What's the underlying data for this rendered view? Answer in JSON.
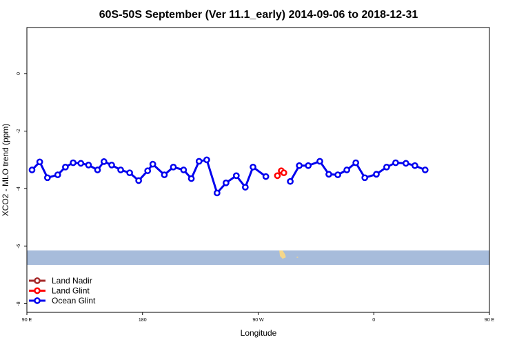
{
  "chart_data": {
    "type": "line",
    "title": "60S-50S September (Ver 11.1_early)   2014-09-06 to 2018-12-31",
    "xlabel": "Longitude",
    "ylabel": "XCO2 - MLO trend (ppm)",
    "xlim": [
      90,
      450
    ],
    "ylim": [
      -8.3,
      1.6
    ],
    "x_ticks": [
      {
        "value": 90,
        "label": "90 E"
      },
      {
        "value": 180,
        "label": "180"
      },
      {
        "value": 270,
        "label": "90 W"
      },
      {
        "value": 360,
        "label": "0"
      },
      {
        "value": 450,
        "label": "90 E"
      },
      {
        "value": 540,
        "label": "180"
      }
    ],
    "y_ticks": [
      {
        "value": 0,
        "label": "0"
      },
      {
        "value": -2,
        "label": "-2"
      },
      {
        "value": -4,
        "label": "-4"
      },
      {
        "value": -6,
        "label": "-6"
      },
      {
        "value": -8,
        "label": "-8"
      }
    ],
    "land_band": {
      "ymin": -6.65,
      "ymax": -6.15,
      "color": "#a7bcdb"
    },
    "land_color": "#f5d78a",
    "legend_position": "bottom-left",
    "series": [
      {
        "name": "Land Nadir",
        "color": "#a52a2a",
        "segments": []
      },
      {
        "name": "Land Glint",
        "color": "#ff0000",
        "segments": [
          [
            [
              285,
              -3.55
            ],
            [
              288,
              -3.38
            ],
            [
              290,
              -3.45
            ]
          ]
        ]
      },
      {
        "name": "Ocean Glint",
        "color": "#0000ee",
        "segments": [
          [
            [
              94,
              -3.35
            ],
            [
              100,
              -3.07
            ],
            [
              106,
              -3.62
            ],
            [
              114,
              -3.52
            ],
            [
              120,
              -3.25
            ],
            [
              126,
              -3.1
            ],
            [
              132,
              -3.12
            ],
            [
              138,
              -3.18
            ],
            [
              145,
              -3.35
            ],
            [
              150,
              -3.06
            ],
            [
              156,
              -3.18
            ],
            [
              163,
              -3.35
            ],
            [
              170,
              -3.45
            ],
            [
              177,
              -3.72
            ],
            [
              184,
              -3.38
            ],
            [
              188,
              -3.15
            ],
            [
              197,
              -3.52
            ],
            [
              204,
              -3.25
            ],
            [
              212,
              -3.35
            ],
            [
              218,
              -3.65
            ],
            [
              224,
              -3.05
            ],
            [
              230,
              -3.0
            ],
            [
              238,
              -4.15
            ],
            [
              245,
              -3.8
            ],
            [
              253,
              -3.55
            ],
            [
              260,
              -3.95
            ],
            [
              266,
              -3.25
            ],
            [
              276,
              -3.58
            ]
          ],
          [
            [
              295,
              -3.75
            ],
            [
              302,
              -3.2
            ],
            [
              309,
              -3.2
            ],
            [
              318,
              -3.05
            ],
            [
              325,
              -3.5
            ],
            [
              332,
              -3.52
            ],
            [
              339,
              -3.35
            ],
            [
              346,
              -3.1
            ],
            [
              353,
              -3.62
            ],
            [
              362,
              -3.5
            ],
            [
              370,
              -3.25
            ],
            [
              377,
              -3.1
            ],
            [
              385,
              -3.12
            ],
            [
              392,
              -3.2
            ],
            [
              400,
              -3.35
            ]
          ]
        ]
      }
    ]
  }
}
